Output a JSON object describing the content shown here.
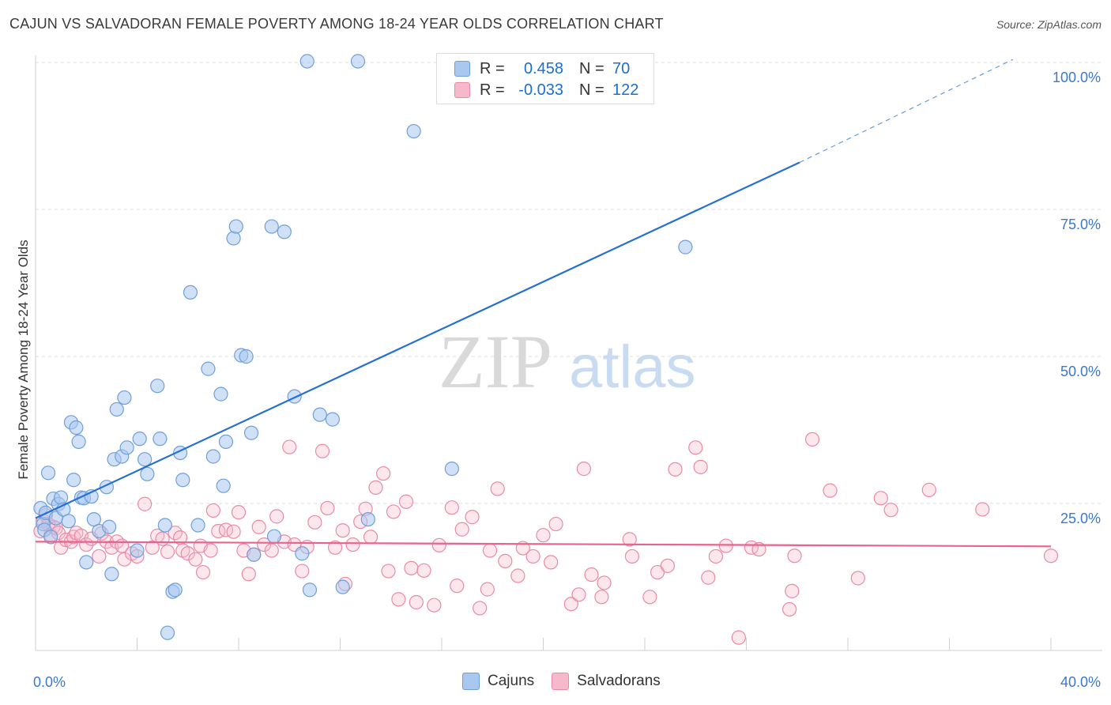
{
  "title": "CAJUN VS SALVADORAN FEMALE POVERTY AMONG 18-24 YEAR OLDS CORRELATION CHART",
  "source": "Source: ZipAtlas.com",
  "watermark": {
    "zip": "ZIP",
    "atlas": "atlas"
  },
  "legend": {
    "r_label": "R =",
    "n_label": "N =",
    "rows": [
      {
        "r": "0.458",
        "n": "70"
      },
      {
        "r": "-0.033",
        "n": "122"
      }
    ]
  },
  "bottom_legend": [
    "Cajuns",
    "Salvadorans"
  ],
  "colors": {
    "cajun_fill": "#a9c8f0",
    "cajun_stroke": "#6f9fd8",
    "cajun_line": "#2670d0",
    "salv_fill": "#f5b9cb",
    "salv_stroke": "#e88aa8",
    "salv_line": "#e8648c",
    "axis_text": "#3b78cf"
  },
  "chart_data": {
    "type": "scatter",
    "title": "CAJUN VS SALVADORAN FEMALE POVERTY AMONG 18-24 YEAR OLDS CORRELATION CHART",
    "xlabel": "",
    "ylabel": "Female Poverty Among 18-24 Year Olds",
    "xlim": [
      0,
      40
    ],
    "ylim": [
      0,
      102
    ],
    "x_tick_labels": [
      "0.0%",
      "40.0%"
    ],
    "y_tick_labels": [
      "25.0%",
      "50.0%",
      "75.0%",
      "100.0%"
    ],
    "y_ticks": [
      25,
      50,
      75,
      100
    ],
    "grid": true,
    "series": [
      {
        "name": "Cajuns",
        "points": [
          [
            0.2,
            24.2
          ],
          [
            0.3,
            21.5
          ],
          [
            0.35,
            20.5
          ],
          [
            0.4,
            23.4
          ],
          [
            0.5,
            30.2
          ],
          [
            0.6,
            19.3
          ],
          [
            0.7,
            25.8
          ],
          [
            0.8,
            22.5
          ],
          [
            0.9,
            24.9
          ],
          [
            1.0,
            26.0
          ],
          [
            1.1,
            24.0
          ],
          [
            1.3,
            22.0
          ],
          [
            1.4,
            38.8
          ],
          [
            1.5,
            29.0
          ],
          [
            1.6,
            37.9
          ],
          [
            1.7,
            35.5
          ],
          [
            1.8,
            26.0
          ],
          [
            1.9,
            25.9
          ],
          [
            2.0,
            15.0
          ],
          [
            2.2,
            26.2
          ],
          [
            2.3,
            22.3
          ],
          [
            2.5,
            20.3
          ],
          [
            2.8,
            27.8
          ],
          [
            2.9,
            21.0
          ],
          [
            3.0,
            13.0
          ],
          [
            3.1,
            32.5
          ],
          [
            3.2,
            41.0
          ],
          [
            3.4,
            33.0
          ],
          [
            3.5,
            43.0
          ],
          [
            3.6,
            34.5
          ],
          [
            4.0,
            17.0
          ],
          [
            4.1,
            36.0
          ],
          [
            4.3,
            32.5
          ],
          [
            4.4,
            30.0
          ],
          [
            4.8,
            45.0
          ],
          [
            4.9,
            36.0
          ],
          [
            5.1,
            21.3
          ],
          [
            5.4,
            10.0
          ],
          [
            5.5,
            10.3
          ],
          [
            5.2,
            3.0
          ],
          [
            5.7,
            33.6
          ],
          [
            5.8,
            29.0
          ],
          [
            6.1,
            60.9
          ],
          [
            6.4,
            21.3
          ],
          [
            6.8,
            47.9
          ],
          [
            7.0,
            33.0
          ],
          [
            7.3,
            43.6
          ],
          [
            7.4,
            28.0
          ],
          [
            7.5,
            35.5
          ],
          [
            7.8,
            70.1
          ],
          [
            7.9,
            72.1
          ],
          [
            8.1,
            50.2
          ],
          [
            8.3,
            50.0
          ],
          [
            8.5,
            37.0
          ],
          [
            8.6,
            16.3
          ],
          [
            9.3,
            72.1
          ],
          [
            9.4,
            19.4
          ],
          [
            9.8,
            71.2
          ],
          [
            10.2,
            43.2
          ],
          [
            10.5,
            16.5
          ],
          [
            10.8,
            10.3
          ],
          [
            11.2,
            40.1
          ],
          [
            11.7,
            39.3
          ],
          [
            10.7,
            100.2
          ],
          [
            12.1,
            10.8
          ],
          [
            12.7,
            100.2
          ],
          [
            13.1,
            22.3
          ],
          [
            14.9,
            88.3
          ],
          [
            16.4,
            30.9
          ],
          [
            25.6,
            68.6
          ]
        ]
      },
      {
        "name": "Salvadorans",
        "points": [
          [
            0.2,
            20.3
          ],
          [
            0.3,
            22.0
          ],
          [
            0.4,
            23.0
          ],
          [
            0.5,
            21.5
          ],
          [
            0.6,
            19.6
          ],
          [
            0.7,
            21.0
          ],
          [
            0.8,
            20.8
          ],
          [
            0.9,
            20.0
          ],
          [
            1.0,
            17.5
          ],
          [
            1.2,
            18.8
          ],
          [
            1.4,
            18.5
          ],
          [
            1.5,
            19.3
          ],
          [
            1.6,
            20.0
          ],
          [
            1.8,
            19.5
          ],
          [
            2.0,
            18.0
          ],
          [
            2.2,
            19.0
          ],
          [
            2.5,
            16.0
          ],
          [
            2.6,
            19.9
          ],
          [
            2.8,
            18.5
          ],
          [
            3.0,
            17.5
          ],
          [
            3.2,
            18.5
          ],
          [
            3.4,
            17.8
          ],
          [
            3.5,
            15.5
          ],
          [
            3.8,
            16.5
          ],
          [
            4.0,
            16.0
          ],
          [
            4.3,
            24.9
          ],
          [
            4.6,
            17.5
          ],
          [
            4.8,
            19.5
          ],
          [
            5.0,
            19.0
          ],
          [
            5.2,
            16.8
          ],
          [
            5.5,
            20.0
          ],
          [
            5.7,
            19.2
          ],
          [
            5.8,
            17.0
          ],
          [
            6.0,
            16.5
          ],
          [
            6.3,
            15.5
          ],
          [
            6.5,
            17.8
          ],
          [
            6.6,
            13.3
          ],
          [
            6.9,
            17.0
          ],
          [
            7.0,
            23.8
          ],
          [
            7.2,
            20.3
          ],
          [
            7.5,
            20.5
          ],
          [
            7.8,
            20.2
          ],
          [
            8.0,
            23.5
          ],
          [
            8.2,
            17.0
          ],
          [
            8.4,
            13.0
          ],
          [
            8.6,
            16.3
          ],
          [
            8.8,
            21.0
          ],
          [
            9.0,
            18.0
          ],
          [
            9.3,
            17.0
          ],
          [
            9.5,
            22.8
          ],
          [
            9.8,
            18.5
          ],
          [
            10.0,
            34.6
          ],
          [
            10.2,
            18.0
          ],
          [
            10.5,
            13.5
          ],
          [
            10.7,
            17.6
          ],
          [
            11.0,
            21.8
          ],
          [
            11.3,
            33.9
          ],
          [
            11.5,
            24.2
          ],
          [
            11.8,
            17.5
          ],
          [
            12.1,
            20.4
          ],
          [
            12.2,
            11.3
          ],
          [
            12.5,
            18.0
          ],
          [
            12.8,
            21.9
          ],
          [
            13.0,
            24.1
          ],
          [
            13.2,
            19.3
          ],
          [
            13.4,
            27.7
          ],
          [
            13.7,
            30.1
          ],
          [
            13.9,
            13.5
          ],
          [
            14.1,
            23.6
          ],
          [
            14.3,
            8.7
          ],
          [
            14.6,
            25.3
          ],
          [
            14.8,
            14.0
          ],
          [
            15.0,
            8.2
          ],
          [
            15.3,
            13.6
          ],
          [
            15.7,
            7.7
          ],
          [
            15.9,
            17.9
          ],
          [
            16.4,
            24.3
          ],
          [
            16.6,
            11.0
          ],
          [
            16.8,
            20.6
          ],
          [
            17.2,
            22.7
          ],
          [
            17.5,
            7.2
          ],
          [
            17.8,
            10.4
          ],
          [
            17.9,
            17.0
          ],
          [
            18.2,
            27.5
          ],
          [
            18.5,
            15.2
          ],
          [
            19.0,
            12.7
          ],
          [
            19.2,
            17.4
          ],
          [
            19.6,
            16.0
          ],
          [
            20.0,
            19.6
          ],
          [
            20.3,
            15.0
          ],
          [
            20.5,
            21.5
          ],
          [
            21.1,
            7.9
          ],
          [
            21.4,
            9.5
          ],
          [
            21.6,
            30.9
          ],
          [
            21.9,
            12.9
          ],
          [
            22.3,
            9.1
          ],
          [
            22.4,
            11.5
          ],
          [
            23.4,
            18.9
          ],
          [
            23.5,
            16.0
          ],
          [
            24.2,
            9.1
          ],
          [
            24.5,
            13.3
          ],
          [
            24.9,
            14.4
          ],
          [
            25.2,
            30.8
          ],
          [
            26.0,
            34.5
          ],
          [
            26.2,
            31.2
          ],
          [
            26.5,
            12.4
          ],
          [
            26.8,
            16.0
          ],
          [
            27.2,
            17.8
          ],
          [
            27.7,
            2.2
          ],
          [
            28.2,
            17.5
          ],
          [
            28.5,
            17.2
          ],
          [
            29.7,
            7.0
          ],
          [
            29.8,
            10.1
          ],
          [
            29.9,
            16.1
          ],
          [
            30.6,
            35.9
          ],
          [
            31.3,
            27.2
          ],
          [
            32.4,
            12.3
          ],
          [
            33.3,
            25.9
          ],
          [
            33.7,
            23.9
          ],
          [
            35.2,
            27.3
          ],
          [
            37.3,
            24.0
          ],
          [
            40.0,
            16.1
          ]
        ]
      }
    ],
    "trend_lines": [
      {
        "series": "Cajuns",
        "from": [
          0,
          22.5
        ],
        "to": [
          30.1,
          83.0
        ],
        "dashed_to": [
          38.5,
          100.5
        ]
      },
      {
        "series": "Salvadorans",
        "from": [
          0,
          18.5
        ],
        "to": [
          40.0,
          17.7
        ]
      }
    ]
  }
}
